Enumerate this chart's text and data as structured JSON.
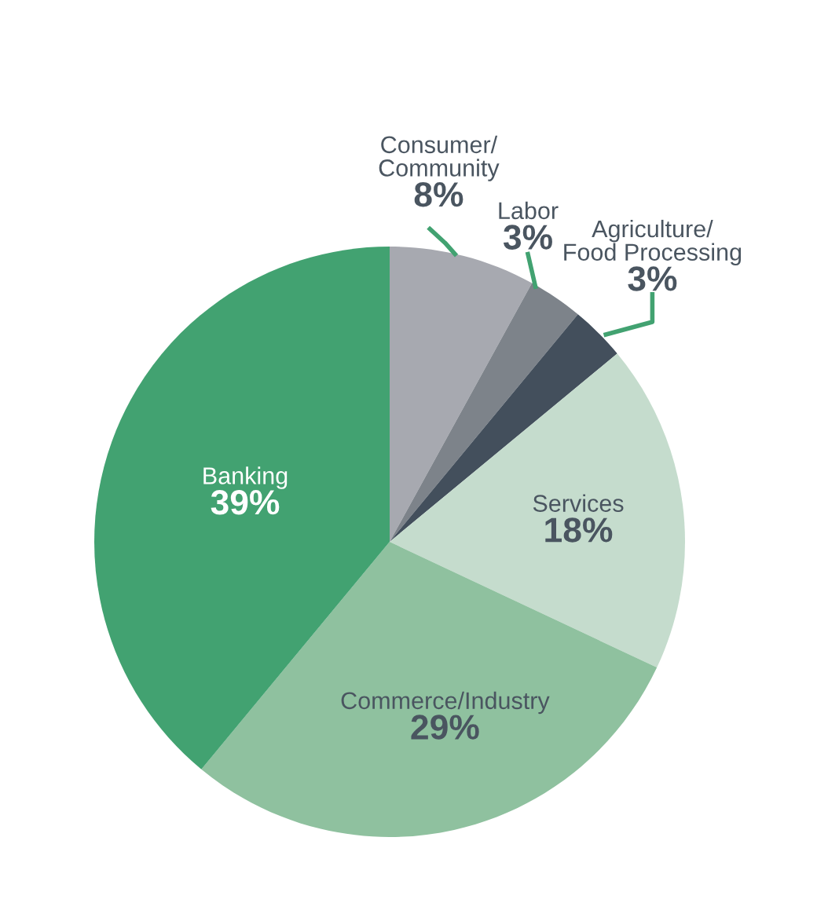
{
  "chart_data": {
    "type": "pie",
    "categories": [
      "Consumer/\nCommunity",
      "Labor",
      "Agriculture/\nFood Processing",
      "Services",
      "Commerce/Industry",
      "Banking"
    ],
    "values": [
      8,
      3,
      3,
      18,
      29,
      39
    ],
    "value_labels": [
      "8%",
      "3%",
      "3%",
      "18%",
      "29%",
      "39%"
    ],
    "colors": [
      "#a7a9b0",
      "#7d838a",
      "#434f5c",
      "#c5dccd",
      "#8fc19f",
      "#42a271"
    ]
  }
}
